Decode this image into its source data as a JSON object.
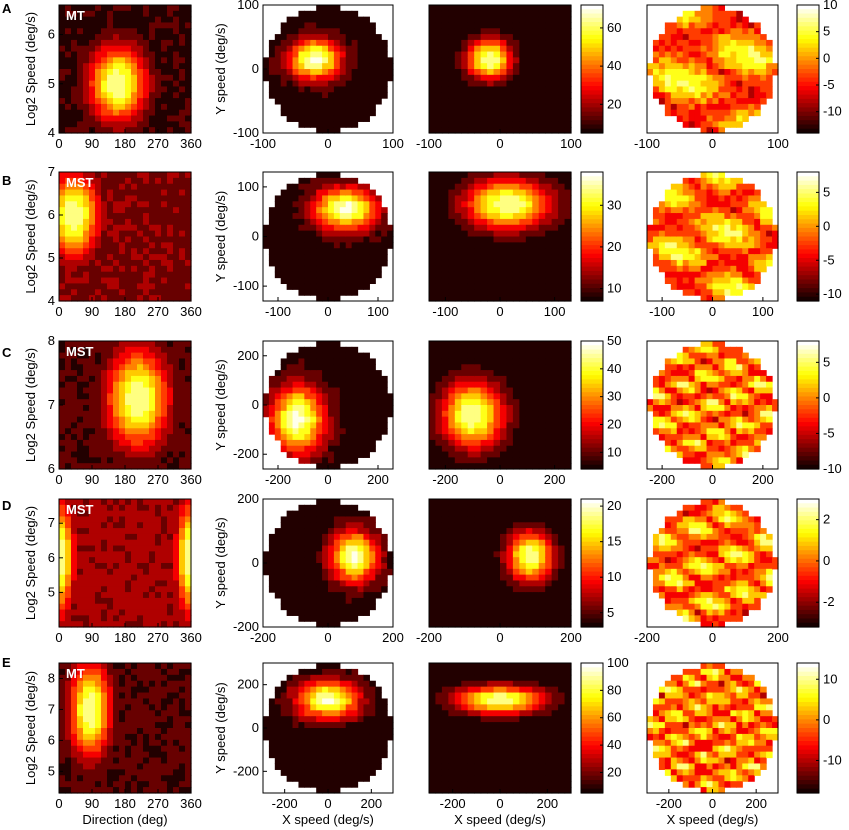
{
  "chart_data": [
    {
      "type": "heatmap",
      "row": "A",
      "panel": "direction-speed",
      "annotation": "MT",
      "xlabel": "",
      "ylabel": "Log2 Speed (deg/s)",
      "xlim": [
        0,
        360
      ],
      "ylim": [
        4,
        6.6
      ],
      "xticks": [
        "0",
        "90",
        "180",
        "270",
        "360"
      ],
      "yticks": [
        "4",
        "5",
        "6"
      ],
      "peak": {
        "x": 160,
        "y": 5.0
      },
      "spread": {
        "x": 55,
        "y": 0.55
      },
      "background": 0.05
    },
    {
      "type": "heatmap",
      "row": "A",
      "panel": "velocity-data",
      "xlabel": "",
      "ylabel": "Y speed (deg/s)",
      "xlim": [
        -100,
        100
      ],
      "ylim": [
        -100,
        100
      ],
      "xticks": [
        "-100",
        "0",
        "100"
      ],
      "yticks": [
        "-100",
        "0",
        "100"
      ],
      "peak": {
        "x": -20,
        "y": 15
      },
      "spread": {
        "x": 28,
        "y": 22
      }
    },
    {
      "type": "heatmap",
      "row": "A",
      "panel": "velocity-fit",
      "xlabel": "",
      "xlim": [
        -100,
        100
      ],
      "ylim": [
        -100,
        100
      ],
      "xticks": [
        "-100",
        "0",
        "100"
      ],
      "peak": {
        "x": -15,
        "y": 15
      },
      "spread": {
        "x": 22,
        "y": 22
      },
      "colorbar": {
        "ticks": [
          "20",
          "40",
          "60"
        ],
        "range": [
          5,
          72
        ]
      }
    },
    {
      "type": "heatmap",
      "row": "A",
      "panel": "residual",
      "xlabel": "",
      "xlim": [
        -100,
        100
      ],
      "ylim": [
        -100,
        100
      ],
      "xticks": [
        "-100",
        "0",
        "100"
      ],
      "colorbar": {
        "ticks": [
          "10",
          "5",
          "0",
          "-5",
          "-10"
        ],
        "range": [
          -14,
          10
        ]
      }
    },
    {
      "type": "heatmap",
      "row": "B",
      "panel": "direction-speed",
      "annotation": "MST",
      "xlabel": "",
      "ylabel": "Log2 Speed (deg/s)",
      "xlim": [
        0,
        360
      ],
      "ylim": [
        4,
        7
      ],
      "xticks": [
        "0",
        "90",
        "180",
        "270",
        "360"
      ],
      "yticks": [
        "4",
        "5",
        "6",
        "7"
      ],
      "peak": {
        "x": 40,
        "y": 6.0
      },
      "spread": {
        "x": 50,
        "y": 0.7
      },
      "background": 0.15
    },
    {
      "type": "heatmap",
      "row": "B",
      "panel": "velocity-data",
      "xlabel": "",
      "ylabel": "Y speed (deg/s)",
      "xlim": [
        -130,
        130
      ],
      "ylim": [
        -130,
        130
      ],
      "xticks": [
        "-100",
        "0",
        "100"
      ],
      "yticks": [
        "-100",
        "0",
        "100"
      ],
      "peak": {
        "x": 35,
        "y": 55
      },
      "spread": {
        "x": 45,
        "y": 30
      }
    },
    {
      "type": "heatmap",
      "row": "B",
      "panel": "velocity-fit",
      "xlabel": "",
      "xlim": [
        -130,
        130
      ],
      "ylim": [
        -130,
        130
      ],
      "xticks": [
        "-100",
        "0",
        "100"
      ],
      "peak": {
        "x": 15,
        "y": 65
      },
      "spread": {
        "x": 55,
        "y": 35
      },
      "colorbar": {
        "ticks": [
          "30",
          "20",
          "10"
        ],
        "range": [
          7,
          38
        ]
      }
    },
    {
      "type": "heatmap",
      "row": "B",
      "panel": "residual",
      "xlabel": "",
      "xlim": [
        -130,
        130
      ],
      "ylim": [
        -130,
        130
      ],
      "xticks": [
        "-100",
        "0",
        "100"
      ],
      "colorbar": {
        "ticks": [
          "5",
          "0",
          "-5",
          "-10"
        ],
        "range": [
          -11,
          8
        ]
      }
    },
    {
      "type": "heatmap",
      "row": "C",
      "panel": "direction-speed",
      "annotation": "MST",
      "xlabel": "",
      "ylabel": "Log2 Speed (deg/s)",
      "xlim": [
        0,
        360
      ],
      "ylim": [
        6,
        8
      ],
      "xticks": [
        "0",
        "90",
        "180",
        "270",
        "360"
      ],
      "yticks": [
        "6",
        "7",
        "8"
      ],
      "peak": {
        "x": 215,
        "y": 7.1
      },
      "spread": {
        "x": 60,
        "y": 0.55
      },
      "background": 0.08
    },
    {
      "type": "heatmap",
      "row": "C",
      "panel": "velocity-data",
      "xlabel": "",
      "ylabel": "Y speed (deg/s)",
      "xlim": [
        -260,
        260
      ],
      "ylim": [
        -260,
        260
      ],
      "xticks": [
        "-200",
        "0",
        "200"
      ],
      "yticks": [
        "-200",
        "0",
        "200"
      ],
      "peak": {
        "x": -120,
        "y": -60
      },
      "spread": {
        "x": 75,
        "y": 95
      }
    },
    {
      "type": "heatmap",
      "row": "C",
      "panel": "velocity-fit",
      "xlabel": "",
      "xlim": [
        -260,
        260
      ],
      "ylim": [
        -260,
        260
      ],
      "xticks": [
        "-200",
        "0",
        "200"
      ],
      "peak": {
        "x": -100,
        "y": -40
      },
      "spread": {
        "x": 80,
        "y": 95
      },
      "colorbar": {
        "ticks": [
          "50",
          "40",
          "30",
          "20",
          "10"
        ],
        "range": [
          4,
          50
        ]
      }
    },
    {
      "type": "heatmap",
      "row": "C",
      "panel": "residual",
      "xlabel": "",
      "xlim": [
        -260,
        260
      ],
      "ylim": [
        -260,
        260
      ],
      "xticks": [
        "-200",
        "0",
        "200"
      ],
      "colorbar": {
        "ticks": [
          "5",
          "0",
          "-5",
          "-10"
        ],
        "range": [
          -10,
          8
        ]
      }
    },
    {
      "type": "heatmap",
      "row": "D",
      "panel": "direction-speed",
      "annotation": "MST",
      "xlabel": "",
      "ylabel": "Log2 Speed (deg/s)",
      "xlim": [
        0,
        360
      ],
      "ylim": [
        4,
        7.7
      ],
      "xticks": [
        "0",
        "90",
        "180",
        "270",
        "360"
      ],
      "yticks": [
        "5",
        "6",
        "7"
      ],
      "peak": {
        "x": 0,
        "y": 6.0
      },
      "spread": {
        "x": 30,
        "y": 1.2
      },
      "background": 0.2
    },
    {
      "type": "heatmap",
      "row": "D",
      "panel": "velocity-data",
      "xlabel": "",
      "ylabel": "Y speed (deg/s)",
      "xlim": [
        -200,
        200
      ],
      "ylim": [
        -200,
        200
      ],
      "xticks": [
        "-200",
        "0",
        "200"
      ],
      "yticks": [
        "-200",
        "0",
        "200"
      ],
      "peak": {
        "x": 80,
        "y": 20
      },
      "spread": {
        "x": 50,
        "y": 55
      }
    },
    {
      "type": "heatmap",
      "row": "D",
      "panel": "velocity-fit",
      "xlabel": "",
      "xlim": [
        -200,
        200
      ],
      "ylim": [
        -200,
        200
      ],
      "xticks": [
        "-200",
        "0",
        "200"
      ],
      "peak": {
        "x": 85,
        "y": 20
      },
      "spread": {
        "x": 45,
        "y": 55
      },
      "colorbar": {
        "ticks": [
          "20",
          "15",
          "10",
          "5"
        ],
        "range": [
          3,
          21
        ]
      }
    },
    {
      "type": "heatmap",
      "row": "D",
      "panel": "residual",
      "xlabel": "",
      "xlim": [
        -200,
        200
      ],
      "ylim": [
        -200,
        200
      ],
      "xticks": [
        "-200",
        "0",
        "200"
      ],
      "colorbar": {
        "ticks": [
          "2",
          "0",
          "-2"
        ],
        "range": [
          -3.2,
          3
        ]
      }
    },
    {
      "type": "heatmap",
      "row": "E",
      "panel": "direction-speed",
      "annotation": "MT",
      "xlabel": "Direction (deg)",
      "ylabel": "Log2 Speed (deg/s)",
      "xlim": [
        0,
        360
      ],
      "ylim": [
        4.3,
        8.5
      ],
      "xticks": [
        "0",
        "90",
        "180",
        "270",
        "360"
      ],
      "yticks": [
        "5",
        "6",
        "7",
        "8"
      ],
      "peak": {
        "x": 85,
        "y": 7.0
      },
      "spread": {
        "x": 40,
        "y": 1.1
      },
      "background": 0.08
    },
    {
      "type": "heatmap",
      "row": "E",
      "panel": "velocity-data",
      "xlabel": "X speed (deg/s)",
      "ylabel": "Y speed (deg/s)",
      "xlim": [
        -300,
        300
      ],
      "ylim": [
        -300,
        300
      ],
      "xticks": [
        "-200",
        "0",
        "200"
      ],
      "yticks": [
        "-200",
        "0",
        "200"
      ],
      "peak": {
        "x": 0,
        "y": 130
      },
      "spread": {
        "x": 100,
        "y": 60
      }
    },
    {
      "type": "heatmap",
      "row": "E",
      "panel": "velocity-fit",
      "xlabel": "X speed (deg/s)",
      "xlim": [
        -300,
        300
      ],
      "ylim": [
        -300,
        300
      ],
      "xticks": [
        "-200",
        "0",
        "200"
      ],
      "peak": {
        "x": 0,
        "y": 130
      },
      "spread": {
        "x": 130,
        "y": 45
      },
      "colorbar": {
        "ticks": [
          "100",
          "80",
          "60",
          "40",
          "20"
        ],
        "range": [
          5,
          100
        ]
      }
    },
    {
      "type": "heatmap",
      "row": "E",
      "panel": "residual",
      "xlabel": "X speed (deg/s)",
      "xlim": [
        -300,
        300
      ],
      "ylim": [
        -300,
        300
      ],
      "xticks": [
        "-200",
        "0",
        "200"
      ],
      "colorbar": {
        "ticks": [
          "10",
          "0",
          "-10"
        ],
        "range": [
          -18,
          14
        ]
      }
    }
  ],
  "rows": [
    {
      "letter": "A"
    },
    {
      "letter": "B"
    },
    {
      "letter": "C"
    },
    {
      "letter": "D"
    },
    {
      "letter": "E"
    }
  ],
  "colormap": "hot"
}
